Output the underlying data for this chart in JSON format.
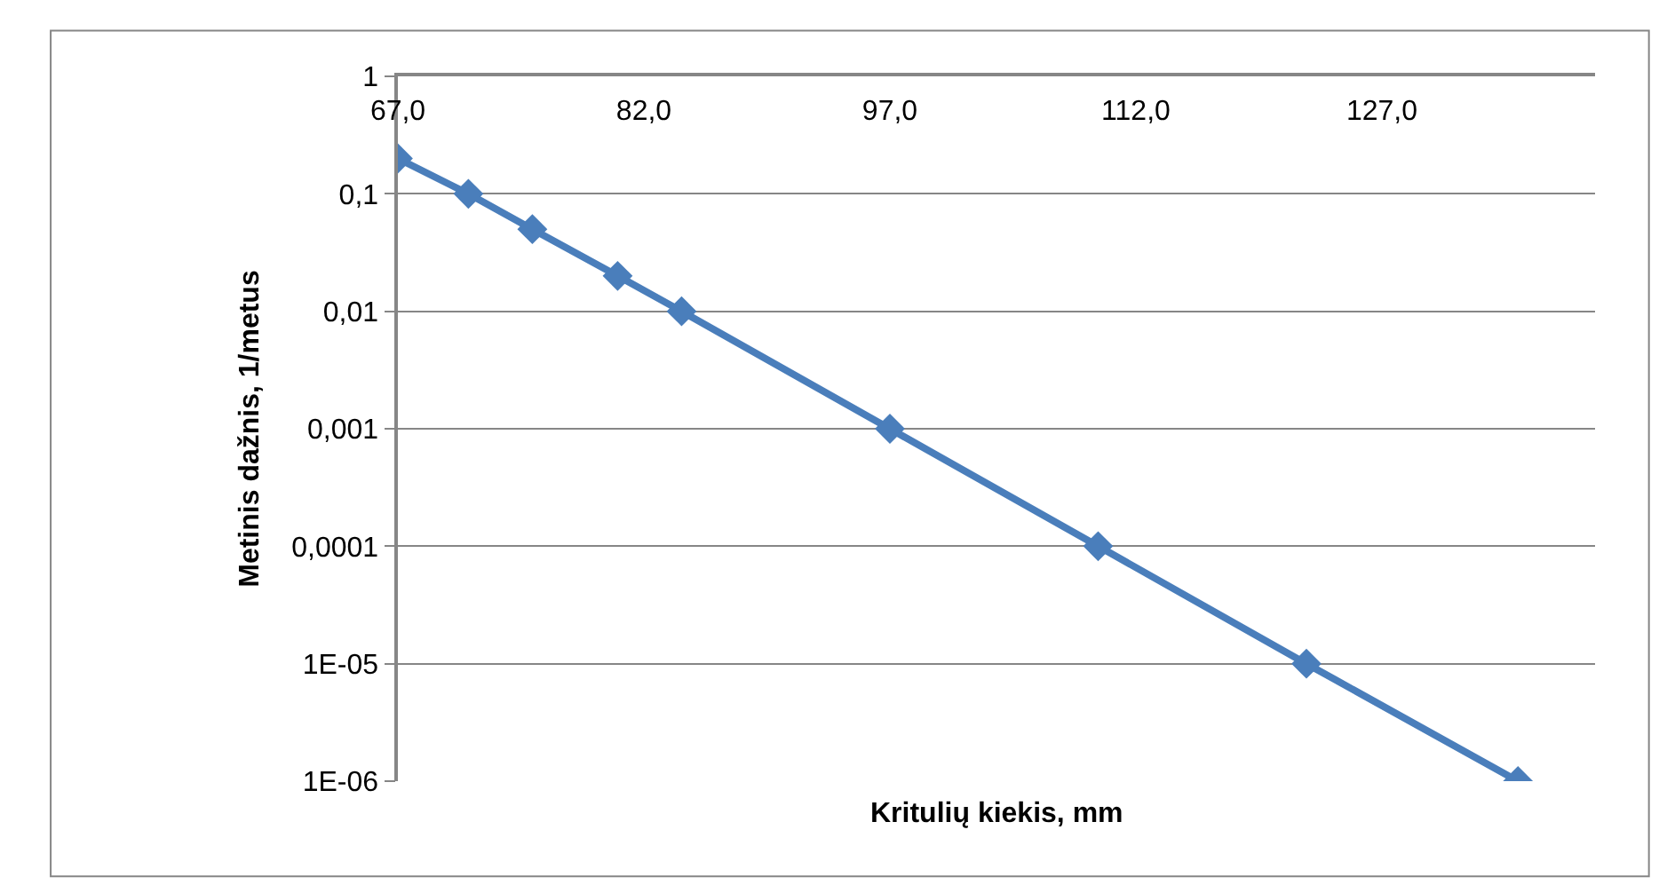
{
  "chart_data": {
    "type": "line",
    "xlabel": "Kritulių kiekis, mm",
    "ylabel": "Metinis dažnis, 1/metus",
    "x": [
      67.0,
      71.3,
      75.2,
      80.4,
      84.3,
      97.0,
      109.7,
      122.4,
      135.3
    ],
    "series": [
      {
        "color": "#4a7ebb",
        "values": [
          0.2,
          0.1,
          0.05,
          0.02,
          0.01,
          0.001,
          0.0001,
          1e-05,
          1e-06
        ]
      }
    ],
    "xlim": [
      67,
      140
    ],
    "xticks": [
      {
        "value": 67,
        "label": "67,0"
      },
      {
        "value": 82,
        "label": "82,0"
      },
      {
        "value": 97,
        "label": "97,0"
      },
      {
        "value": 112,
        "label": "112,0"
      },
      {
        "value": 127,
        "label": "127,0"
      }
    ],
    "ylim": [
      1e-06,
      1
    ],
    "yticks": [
      {
        "value": 1e-06,
        "label": "1E-06"
      },
      {
        "value": 1e-05,
        "label": "1E-05"
      },
      {
        "value": 0.0001,
        "label": "0,0001"
      },
      {
        "value": 0.001,
        "label": "0,001"
      },
      {
        "value": 0.01,
        "label": "0,01"
      },
      {
        "value": 0.1,
        "label": "0,1"
      },
      1
    ],
    "log": true,
    "grid": "y",
    "marker": "diamond",
    "line_style": "solid"
  }
}
